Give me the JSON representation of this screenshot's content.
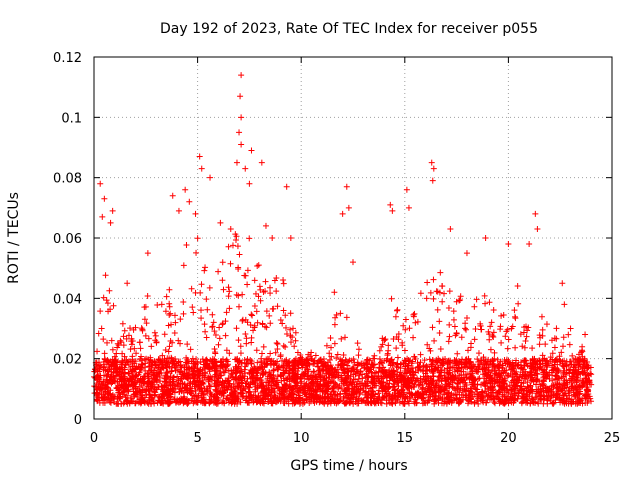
{
  "chart_data": {
    "type": "scatter",
    "title": "Day 192 of 2023, Rate Of TEC Index for receiver p055",
    "xlabel": "GPS time / hours",
    "ylabel": "ROTI / TECUs",
    "xlim": [
      0,
      25
    ],
    "ylim": [
      0,
      0.12
    ],
    "x_ticks": [
      0,
      5,
      10,
      15,
      20,
      25
    ],
    "x_tick_labels": [
      "0",
      "5",
      "10",
      "15",
      "20",
      "25"
    ],
    "y_ticks": [
      0,
      0.02,
      0.04,
      0.06,
      0.08,
      0.1,
      0.12
    ],
    "y_tick_labels": [
      "0",
      "0.02",
      "0.04",
      "0.06",
      "0.08",
      "0.1",
      "0.12"
    ],
    "grid": true,
    "marker": "+",
    "color": "#ff0000",
    "x_range_of_data": [
      0,
      24
    ],
    "baseline_band": [
      0.005,
      0.02
    ],
    "envelope": {
      "x": [
        0,
        0.5,
        1.0,
        1.5,
        2.0,
        2.5,
        3.0,
        3.5,
        4.0,
        4.5,
        5.0,
        5.5,
        6.0,
        6.5,
        7.0,
        7.5,
        8.0,
        8.5,
        9.0,
        9.5,
        10.0,
        10.5,
        11.0,
        11.5,
        12.0,
        12.5,
        13.0,
        13.5,
        14.0,
        14.5,
        15.0,
        15.5,
        16.0,
        16.5,
        17.0,
        17.5,
        18.0,
        18.5,
        19.0,
        19.5,
        20.0,
        20.5,
        21.0,
        21.5,
        22.0,
        22.5,
        23.0,
        23.5,
        24.0
      ],
      "y": [
        0.028,
        0.05,
        0.04,
        0.03,
        0.032,
        0.045,
        0.038,
        0.042,
        0.055,
        0.058,
        0.06,
        0.048,
        0.052,
        0.058,
        0.065,
        0.06,
        0.055,
        0.045,
        0.05,
        0.035,
        0.022,
        0.024,
        0.02,
        0.032,
        0.04,
        0.028,
        0.022,
        0.021,
        0.03,
        0.045,
        0.038,
        0.042,
        0.05,
        0.052,
        0.045,
        0.04,
        0.042,
        0.045,
        0.04,
        0.035,
        0.042,
        0.045,
        0.04,
        0.035,
        0.032,
        0.03,
        0.028,
        0.025,
        0.02
      ]
    },
    "spikes": [
      {
        "x": 0.3,
        "y": 0.078
      },
      {
        "x": 0.4,
        "y": 0.067
      },
      {
        "x": 0.5,
        "y": 0.073
      },
      {
        "x": 0.8,
        "y": 0.065
      },
      {
        "x": 0.9,
        "y": 0.069
      },
      {
        "x": 1.6,
        "y": 0.045
      },
      {
        "x": 2.6,
        "y": 0.055
      },
      {
        "x": 3.8,
        "y": 0.074
      },
      {
        "x": 4.1,
        "y": 0.069
      },
      {
        "x": 4.4,
        "y": 0.076
      },
      {
        "x": 4.6,
        "y": 0.072
      },
      {
        "x": 4.9,
        "y": 0.068
      },
      {
        "x": 5.1,
        "y": 0.087
      },
      {
        "x": 5.2,
        "y": 0.083
      },
      {
        "x": 5.6,
        "y": 0.08
      },
      {
        "x": 6.1,
        "y": 0.065
      },
      {
        "x": 6.6,
        "y": 0.063
      },
      {
        "x": 6.9,
        "y": 0.085
      },
      {
        "x": 7.0,
        "y": 0.095
      },
      {
        "x": 7.1,
        "y": 0.1
      },
      {
        "x": 7.1,
        "y": 0.091
      },
      {
        "x": 7.05,
        "y": 0.107
      },
      {
        "x": 7.1,
        "y": 0.114
      },
      {
        "x": 7.3,
        "y": 0.083
      },
      {
        "x": 7.5,
        "y": 0.078
      },
      {
        "x": 7.6,
        "y": 0.089
      },
      {
        "x": 8.1,
        "y": 0.085
      },
      {
        "x": 8.3,
        "y": 0.064
      },
      {
        "x": 8.6,
        "y": 0.06
      },
      {
        "x": 9.3,
        "y": 0.077
      },
      {
        "x": 9.5,
        "y": 0.06
      },
      {
        "x": 11.6,
        "y": 0.042
      },
      {
        "x": 12.0,
        "y": 0.068
      },
      {
        "x": 12.2,
        "y": 0.077
      },
      {
        "x": 12.3,
        "y": 0.07
      },
      {
        "x": 12.5,
        "y": 0.052
      },
      {
        "x": 14.3,
        "y": 0.071
      },
      {
        "x": 14.4,
        "y": 0.069
      },
      {
        "x": 15.1,
        "y": 0.076
      },
      {
        "x": 15.2,
        "y": 0.07
      },
      {
        "x": 16.3,
        "y": 0.085
      },
      {
        "x": 16.35,
        "y": 0.079
      },
      {
        "x": 16.4,
        "y": 0.083
      },
      {
        "x": 17.2,
        "y": 0.063
      },
      {
        "x": 18.0,
        "y": 0.055
      },
      {
        "x": 18.9,
        "y": 0.06
      },
      {
        "x": 20.0,
        "y": 0.058
      },
      {
        "x": 21.0,
        "y": 0.058
      },
      {
        "x": 21.3,
        "y": 0.068
      },
      {
        "x": 21.4,
        "y": 0.063
      },
      {
        "x": 22.6,
        "y": 0.045
      },
      {
        "x": 22.7,
        "y": 0.038
      },
      {
        "x": 23.0,
        "y": 0.03
      },
      {
        "x": 23.7,
        "y": 0.028
      }
    ]
  }
}
